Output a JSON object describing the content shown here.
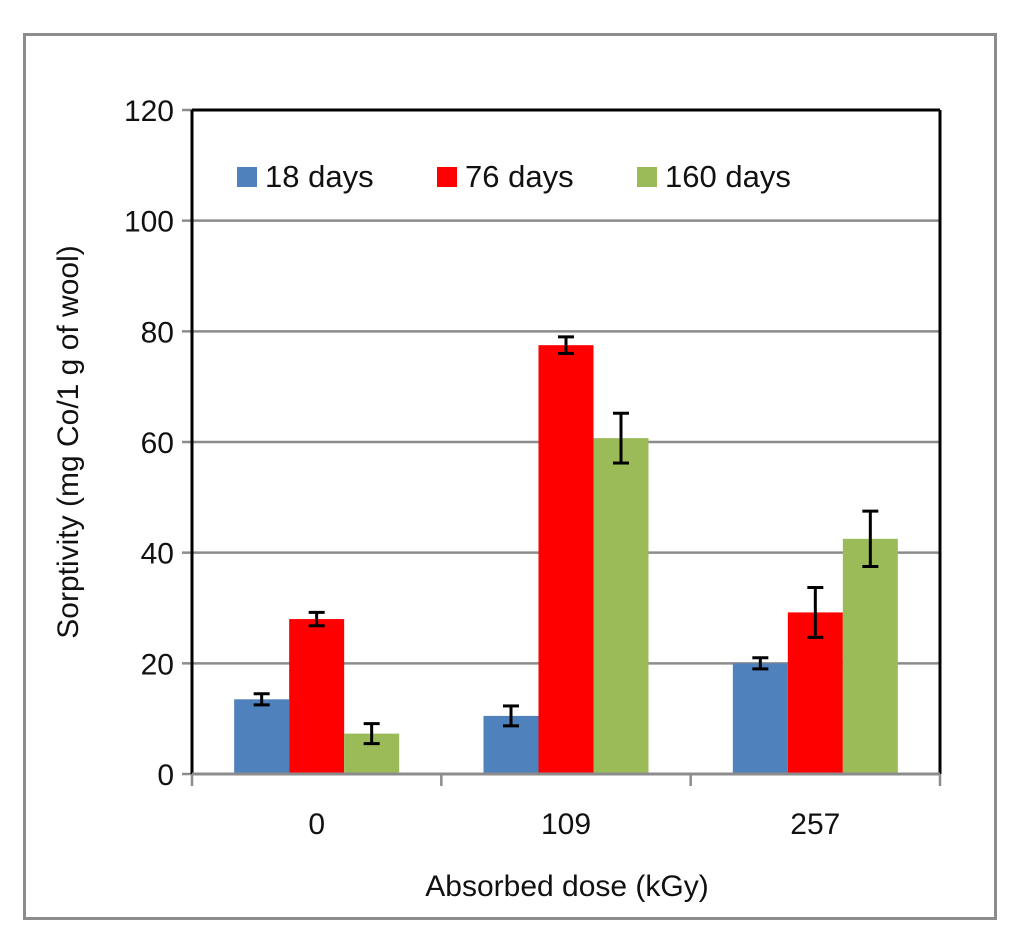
{
  "chart_data": {
    "type": "bar",
    "title": "",
    "xlabel": "Absorbed dose (kGy)",
    "ylabel": "Sorptivity (mg Co/1 g of wool)",
    "ylim": [
      0,
      120
    ],
    "yticks": [
      0,
      20,
      40,
      60,
      80,
      100,
      120
    ],
    "ytick_labels": [
      "0",
      "20",
      "40",
      "60",
      "80",
      "100",
      "120"
    ],
    "grid": true,
    "legend_position": "top",
    "categories": [
      "0",
      "109",
      "257"
    ],
    "series": [
      {
        "name": "18 days",
        "color": "#4f81bd",
        "values": [
          13.5,
          10.5,
          20.0
        ],
        "errors": [
          1.0,
          1.8,
          1.0
        ]
      },
      {
        "name": "76 days",
        "color": "#ff0000",
        "values": [
          28.0,
          77.5,
          29.2
        ],
        "errors": [
          1.2,
          1.5,
          4.5
        ]
      },
      {
        "name": "160 days",
        "color": "#9bbb59",
        "values": [
          7.3,
          60.7,
          42.5
        ],
        "errors": [
          1.8,
          4.5,
          5.0
        ]
      }
    ]
  }
}
